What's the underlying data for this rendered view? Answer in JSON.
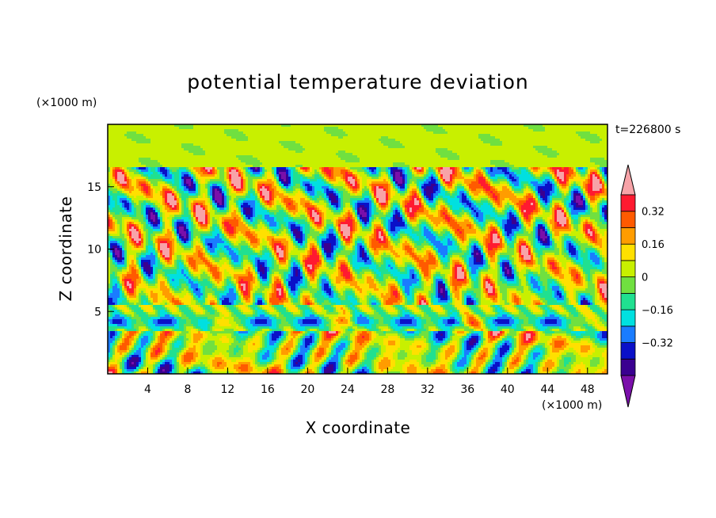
{
  "chart_data": {
    "type": "heatmap",
    "title": "potential temperature deviation",
    "xlabel": "X coordinate",
    "ylabel": "Z coordinate",
    "x_unit": "(×1000 m)",
    "y_unit": "(×1000 m)",
    "time_label": "t=226800 s",
    "xlim": [
      0,
      50
    ],
    "ylim": [
      0,
      20
    ],
    "x_ticks": [
      4,
      8,
      12,
      16,
      20,
      24,
      28,
      32,
      36,
      40,
      44,
      48
    ],
    "y_ticks": [
      5,
      10,
      15
    ],
    "colorbar": {
      "levels": [
        -0.48,
        -0.4,
        -0.32,
        -0.24,
        -0.16,
        -0.08,
        0,
        0.08,
        0.16,
        0.24,
        0.32,
        0.4
      ],
      "labels": [
        "0.32",
        "0.16",
        "0",
        "−0.16",
        "−0.32"
      ],
      "label_values": [
        0.32,
        0.16,
        0,
        -0.16,
        -0.32
      ],
      "colors": [
        "#7a0faa",
        "#3a0090",
        "#0a10c8",
        "#1a7cff",
        "#00e0e0",
        "#20e090",
        "#70e040",
        "#c8f000",
        "#ffe000",
        "#ff9c00",
        "#ff5a00",
        "#ff1a30",
        "#f7a3a8"
      ],
      "extend": "both"
    }
  }
}
